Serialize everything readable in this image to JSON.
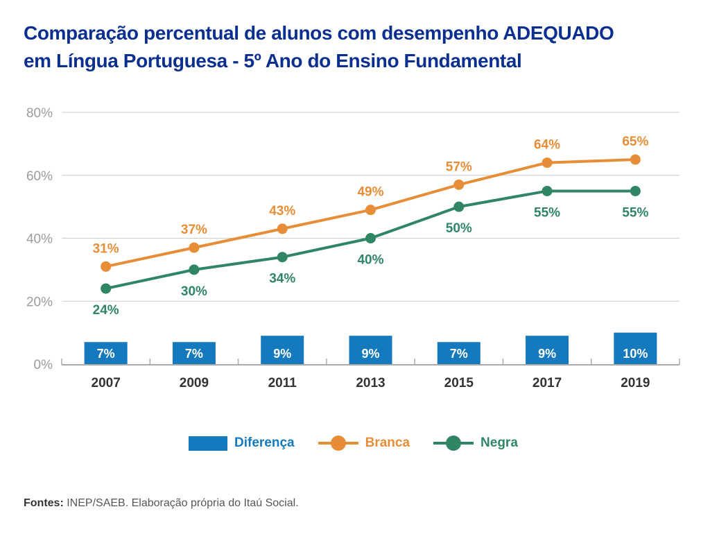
{
  "title": {
    "line1": "Comparação percentual de alunos com desempenho ADEQUADO",
    "line2": "em Língua Portuguesa - 5º Ano do Ensino Fundamental"
  },
  "colors": {
    "title": "#0a2f8f",
    "diferenca": "#1479bd",
    "branca": "#e88d37",
    "negra": "#2f8564",
    "grid": "#cccccc",
    "axis": "#aaaaaa"
  },
  "chart_data": {
    "type": "line",
    "title": "Comparação percentual de alunos com desempenho ADEQUADO em Língua Portuguesa - 5º Ano do Ensino Fundamental",
    "xlabel": "",
    "ylabel": "",
    "categories": [
      "2007",
      "2009",
      "2011",
      "2013",
      "2015",
      "2017",
      "2019"
    ],
    "ylim": [
      0,
      80
    ],
    "yticks": [
      0,
      20,
      40,
      60,
      80
    ],
    "ytick_labels": [
      "0%",
      "20%",
      "40%",
      "60%",
      "80%"
    ],
    "grid": true,
    "legend_position": "bottom",
    "series": [
      {
        "name": "Diferença",
        "type": "bar",
        "values": [
          7,
          7,
          9,
          9,
          7,
          9,
          10
        ],
        "labels": [
          "7%",
          "7%",
          "9%",
          "9%",
          "7%",
          "9%",
          "10%"
        ]
      },
      {
        "name": "Branca",
        "type": "line",
        "values": [
          31,
          37,
          43,
          49,
          57,
          64,
          65
        ],
        "labels": [
          "31%",
          "37%",
          "43%",
          "49%",
          "57%",
          "64%",
          "65%"
        ]
      },
      {
        "name": "Negra",
        "type": "line",
        "values": [
          24,
          30,
          34,
          40,
          50,
          55,
          55
        ],
        "labels": [
          "24%",
          "30%",
          "34%",
          "40%",
          "50%",
          "55%",
          "55%"
        ]
      }
    ]
  },
  "legend": {
    "diferenca": "Diferença",
    "branca": "Branca",
    "negra": "Negra"
  },
  "source": {
    "label": "Fontes:",
    "text": " INEP/SAEB. Elaboração própria do Itaú Social."
  }
}
